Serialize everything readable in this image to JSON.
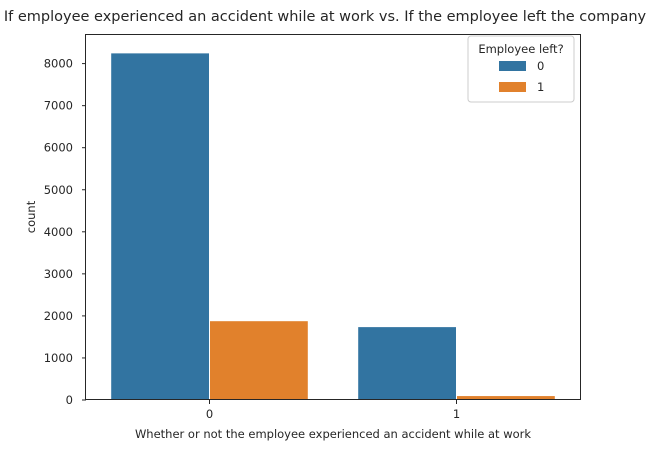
{
  "chart_data": {
    "type": "bar",
    "title": "If employee experienced an accident while at work vs. If the employee left the company",
    "xlabel": "Whether or not the employee experienced an accident while at work",
    "ylabel": "count",
    "categories": [
      "0",
      "1"
    ],
    "ylim": [
      0,
      8680
    ],
    "yticks": [
      0,
      1000,
      2000,
      3000,
      4000,
      5000,
      6000,
      7000,
      8000
    ],
    "grid": false,
    "legend": {
      "title": "Employee left?",
      "placement": "top-right"
    },
    "series": [
      {
        "name": "0",
        "color": "#3274a1",
        "values": [
          8255,
          1745
        ]
      },
      {
        "name": "1",
        "color": "#e1812c",
        "values": [
          1886,
          105
        ]
      }
    ]
  }
}
